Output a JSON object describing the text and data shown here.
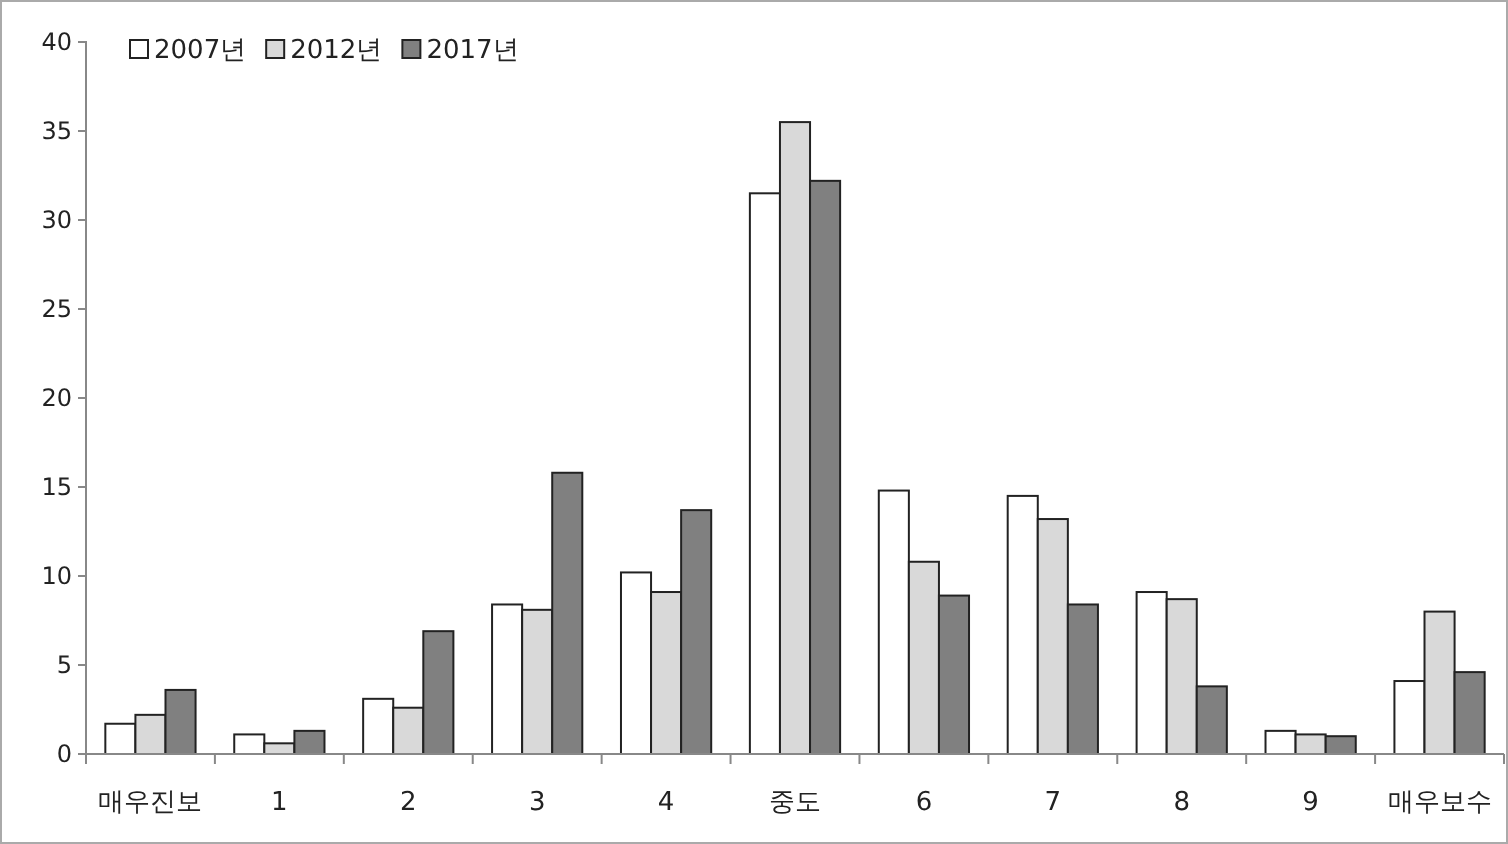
{
  "chart_data": {
    "type": "bar",
    "categories": [
      "매우진보",
      "1",
      "2",
      "3",
      "4",
      "중도",
      "6",
      "7",
      "8",
      "9",
      "매우보수"
    ],
    "series": [
      {
        "name": "2007년",
        "color": "#ffffff",
        "values": [
          1.7,
          1.1,
          3.1,
          8.4,
          10.2,
          31.5,
          14.8,
          14.5,
          9.1,
          1.3,
          4.1
        ]
      },
      {
        "name": "2012년",
        "color": "#d9d9d9",
        "values": [
          2.2,
          0.6,
          2.6,
          8.1,
          9.1,
          35.5,
          10.8,
          13.2,
          8.7,
          1.1,
          8.0
        ]
      },
      {
        "name": "2017년",
        "color": "#808080",
        "values": [
          3.6,
          1.3,
          6.9,
          15.8,
          13.7,
          32.2,
          8.9,
          8.4,
          3.8,
          1.0,
          4.6
        ]
      }
    ],
    "ylim": [
      0,
      40
    ],
    "yticks": [
      0,
      5,
      10,
      15,
      20,
      25,
      30,
      35,
      40
    ],
    "grid": false,
    "legend": "top left"
  }
}
